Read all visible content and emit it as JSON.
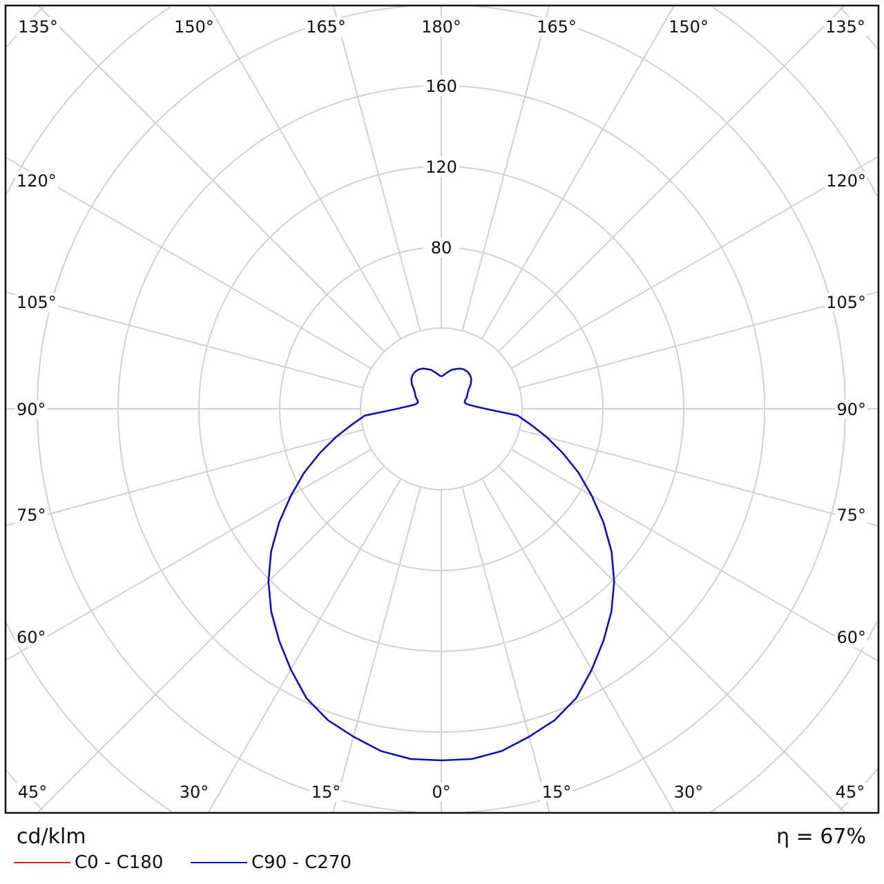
{
  "chart_data": {
    "type": "polar",
    "unit_label": "cd/klm",
    "efficiency_label": "η = 67%",
    "angle_labels": {
      "top": [
        "135°",
        "150°",
        "165°",
        "180°",
        "165°",
        "150°",
        "135°"
      ],
      "left": [
        "120°",
        "105°",
        "90°",
        "75°",
        "60°"
      ],
      "right": [
        "120°",
        "105°",
        "90°",
        "75°",
        "60°"
      ],
      "bottom": [
        "45°",
        "30°",
        "15°",
        "0°",
        "15°",
        "30°",
        "45°"
      ]
    },
    "ring_labels": [
      "80",
      "120",
      "160"
    ],
    "ring_values": [
      40,
      80,
      120,
      160,
      200,
      240,
      280
    ],
    "grid": true,
    "gamma_step_deg": 15,
    "legend_placement": "bottom-left",
    "series": [
      {
        "name": "C0 - C180",
        "color": "#d42020",
        "gamma": [],
        "values": []
      },
      {
        "name": "C90 - C270",
        "color": "#1010b0",
        "gamma": [
          0,
          5,
          10,
          15,
          20,
          25,
          30,
          35,
          40,
          45,
          50,
          55,
          60,
          65,
          70,
          75,
          80,
          85,
          90,
          95,
          100,
          105,
          110,
          115,
          120,
          125,
          130,
          135,
          140,
          145,
          150,
          155,
          160,
          165,
          170,
          175,
          180
        ],
        "values": [
          174,
          174,
          172,
          168,
          164,
          158,
          149,
          140,
          131,
          121,
          110,
          98,
          86,
          75,
          64,
          54,
          45,
          38,
          22,
          16,
          13,
          12,
          12.5,
          14,
          15,
          16.5,
          19,
          21,
          22,
          22.5,
          22.5,
          22,
          21,
          20,
          18.5,
          17,
          16
        ]
      }
    ]
  }
}
